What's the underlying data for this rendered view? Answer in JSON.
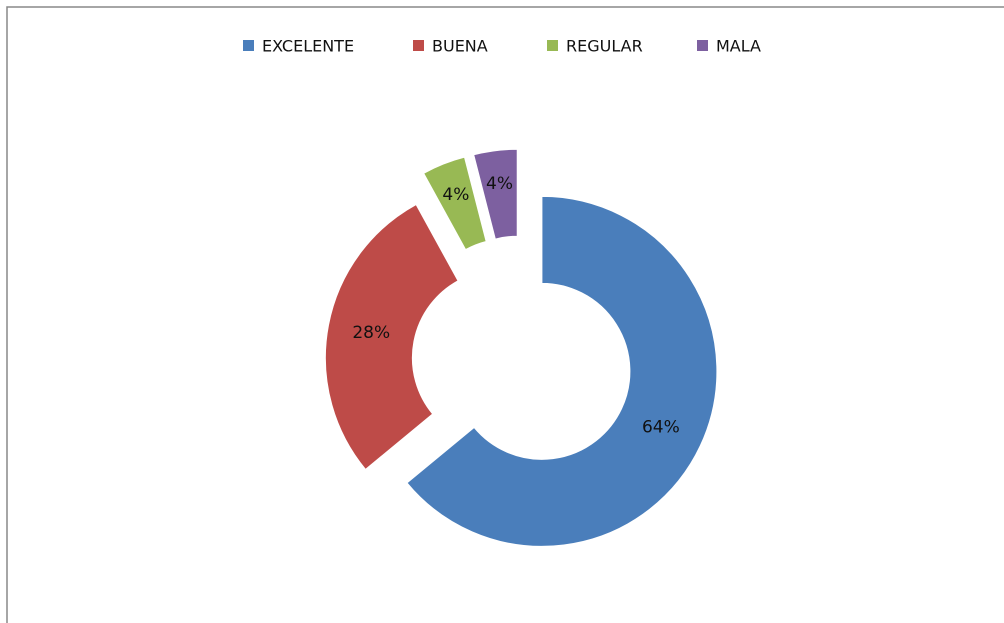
{
  "chart_data": {
    "type": "donut",
    "categories": [
      "EXCELENTE",
      "BUENA",
      "REGULAR",
      "MALA"
    ],
    "values": [
      64,
      28,
      4,
      4
    ],
    "value_labels": [
      "64%",
      "28%",
      "4%",
      "4%"
    ],
    "colors": [
      "#4a7ebb",
      "#be4b48",
      "#98b954",
      "#7d60a0"
    ],
    "legend": "top"
  }
}
